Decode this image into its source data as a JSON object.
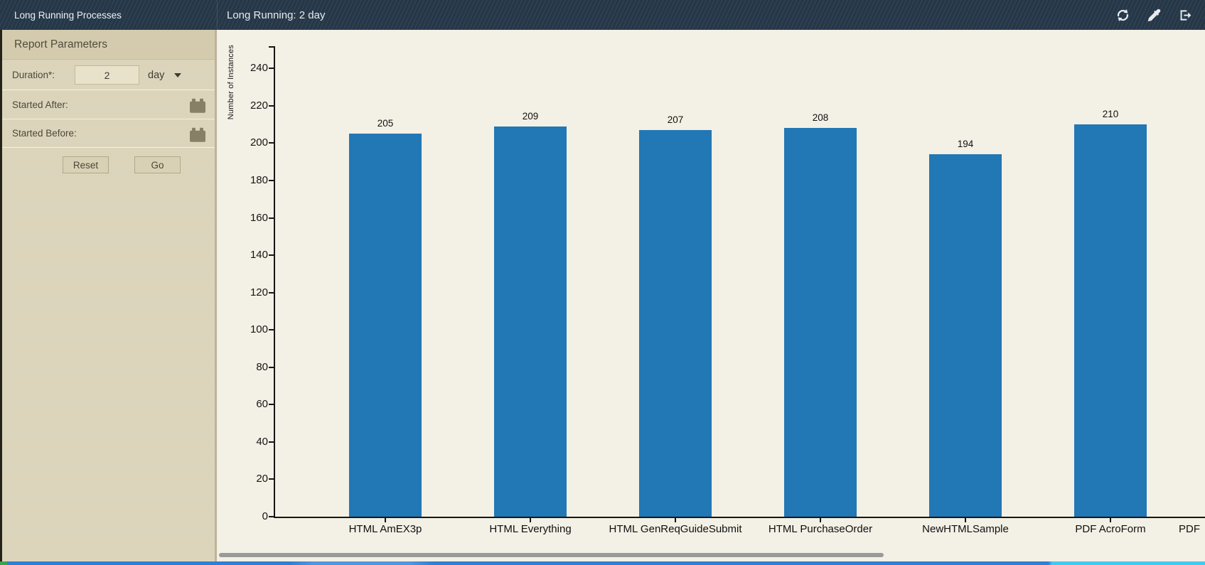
{
  "header": {
    "app_title": "Long Running Processes",
    "report_title": "Long Running: 2 day",
    "actions": [
      {
        "label": "refresh",
        "icon": "refresh-icon"
      },
      {
        "label": "eyedropper",
        "icon": "eyedropper-icon"
      },
      {
        "label": "export",
        "icon": "export-icon"
      }
    ]
  },
  "sidebar": {
    "title": "Report Parameters",
    "duration": {
      "label": "Duration*:",
      "value": "2",
      "unit": "day"
    },
    "started_after": {
      "label": "Started After:"
    },
    "started_before": {
      "label": "Started Before:"
    },
    "buttons": {
      "reset": "Reset",
      "go": "Go"
    }
  },
  "chart_data": {
    "type": "bar",
    "title": "Long Running: 2 day",
    "categories": [
      "HTML AmEX3p",
      "HTML Everything",
      "HTML GenReqGuideSubmit",
      "HTML PurchaseOrder",
      "NewHTMLSample",
      "PDF AcroForm"
    ],
    "values": [
      205,
      209,
      207,
      208,
      194,
      210
    ],
    "partial_next_category": "PDF",
    "xlabel": "",
    "ylabel": "Number of Instances",
    "ylim": [
      0,
      252
    ],
    "ytick_step": 20,
    "bar_color": "#2277b5",
    "grid": false,
    "legend": false
  },
  "accents": {
    "header_navy": "#263849",
    "sidebar_beige": "#dbd4ba",
    "chart_cream": "#f3f0e5",
    "strip_blue": "#2e7fd6",
    "strip_cyan": "#41c9f0",
    "strip_green": "#3da34d",
    "scrollbar_gray": "#9a9a9a"
  }
}
